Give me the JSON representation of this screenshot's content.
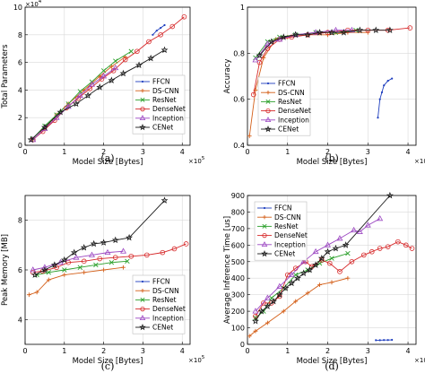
{
  "colors": {
    "FFCN": "#1f3fbf",
    "DS-CNN": "#d4601a",
    "ResNet": "#2ca02c",
    "DenseNet": "#d62728",
    "Inception": "#9c48c2",
    "CENet": "#1a1a1a"
  },
  "legend_entries": [
    "FFCN",
    "DS-CNN",
    "ResNet",
    "DenseNet",
    "Inception",
    "CENet"
  ],
  "chart_data": [
    {
      "panel": "(a)",
      "type": "line",
      "xlabel": "Model Size [Bytes]",
      "ylabel": "Total Parameters",
      "x_multiplier": "×10^5",
      "y_multiplier": "×10^4",
      "xlim": [
        0,
        4.2
      ],
      "ylim": [
        0,
        10
      ],
      "xticks": [
        0,
        1,
        2,
        3,
        4
      ],
      "yticks": [
        0,
        2,
        4,
        6,
        8,
        10
      ],
      "legend_position": "bottom-right",
      "series": [
        {
          "name": "FFCN",
          "marker": "dot",
          "points": [
            [
              3.25,
              8.0
            ],
            [
              3.35,
              8.3
            ],
            [
              3.45,
              8.5
            ],
            [
              3.55,
              8.7
            ]
          ]
        },
        {
          "name": "DS-CNN",
          "marker": "plus",
          "points": [
            [
              0.2,
              0.4
            ],
            [
              0.5,
              1.2
            ],
            [
              0.8,
              2.2
            ],
            [
              1.1,
              3.0
            ],
            [
              1.5,
              4.0
            ],
            [
              1.9,
              5.0
            ],
            [
              2.2,
              5.7
            ],
            [
              2.55,
              6.4
            ]
          ]
        },
        {
          "name": "ResNet",
          "marker": "x",
          "points": [
            [
              0.2,
              0.5
            ],
            [
              0.5,
              1.4
            ],
            [
              0.8,
              2.2
            ],
            [
              1.1,
              3.0
            ],
            [
              1.4,
              3.9
            ],
            [
              1.7,
              4.6
            ],
            [
              2.0,
              5.4
            ],
            [
              2.3,
              6.1
            ],
            [
              2.7,
              6.8
            ]
          ]
        },
        {
          "name": "DenseNet",
          "marker": "circle",
          "points": [
            [
              0.2,
              0.4
            ],
            [
              0.45,
              1.0
            ],
            [
              0.75,
              1.8
            ],
            [
              1.05,
              2.7
            ],
            [
              1.35,
              3.4
            ],
            [
              1.65,
              4.1
            ],
            [
              1.95,
              4.8
            ],
            [
              2.25,
              5.4
            ],
            [
              2.55,
              6.2
            ],
            [
              2.85,
              6.8
            ],
            [
              3.15,
              7.5
            ],
            [
              3.45,
              8.0
            ],
            [
              3.75,
              8.6
            ],
            [
              4.05,
              9.3
            ]
          ]
        },
        {
          "name": "Inception",
          "marker": "triangle",
          "points": [
            [
              0.2,
              0.4
            ],
            [
              0.5,
              1.2
            ],
            [
              0.8,
              2.0
            ],
            [
              1.1,
              2.8
            ],
            [
              1.4,
              3.6
            ],
            [
              1.7,
              4.4
            ],
            [
              2.0,
              5.0
            ],
            [
              2.3,
              5.6
            ]
          ]
        },
        {
          "name": "CENet",
          "marker": "star",
          "points": [
            [
              0.15,
              0.4
            ],
            [
              0.5,
              1.3
            ],
            [
              0.9,
              2.4
            ],
            [
              1.3,
              3.0
            ],
            [
              1.6,
              3.6
            ],
            [
              1.9,
              4.2
            ],
            [
              2.2,
              4.7
            ],
            [
              2.5,
              5.2
            ],
            [
              2.9,
              5.8
            ],
            [
              3.2,
              6.3
            ],
            [
              3.55,
              6.9
            ]
          ]
        }
      ]
    },
    {
      "panel": "(b)",
      "type": "line",
      "xlabel": "Model Size [Bytes]",
      "ylabel": "Accuracy",
      "x_multiplier": "×10^5",
      "xlim": [
        0,
        4.2
      ],
      "ylim": [
        0.4,
        1.0
      ],
      "xticks": [
        0,
        1,
        2,
        3,
        4
      ],
      "yticks": [
        0.4,
        0.6,
        0.8,
        1.0
      ],
      "ytick_labels": [
        "0.4",
        "0.6",
        "0.8",
        "1"
      ],
      "legend_position": "bottom-left",
      "series": [
        {
          "name": "FFCN",
          "marker": "dot",
          "points": [
            [
              3.25,
              0.52
            ],
            [
              3.3,
              0.6
            ],
            [
              3.35,
              0.63
            ],
            [
              3.4,
              0.66
            ],
            [
              3.5,
              0.68
            ],
            [
              3.6,
              0.69
            ]
          ]
        },
        {
          "name": "DS-CNN",
          "marker": "plus",
          "points": [
            [
              0.05,
              0.44
            ],
            [
              0.2,
              0.64
            ],
            [
              0.4,
              0.78
            ],
            [
              0.7,
              0.86
            ],
            [
              1.0,
              0.87
            ],
            [
              1.5,
              0.88
            ],
            [
              2.0,
              0.88
            ],
            [
              2.5,
              0.89
            ],
            [
              3.0,
              0.89
            ]
          ]
        },
        {
          "name": "ResNet",
          "marker": "x",
          "points": [
            [
              0.2,
              0.78
            ],
            [
              0.5,
              0.85
            ],
            [
              0.8,
              0.87
            ],
            [
              1.2,
              0.88
            ],
            [
              1.7,
              0.89
            ],
            [
              2.2,
              0.89
            ],
            [
              2.7,
              0.9
            ]
          ]
        },
        {
          "name": "DenseNet",
          "marker": "circle",
          "points": [
            [
              0.15,
              0.62
            ],
            [
              0.3,
              0.76
            ],
            [
              0.5,
              0.82
            ],
            [
              0.8,
              0.86
            ],
            [
              1.1,
              0.87
            ],
            [
              1.5,
              0.88
            ],
            [
              2.0,
              0.89
            ],
            [
              2.5,
              0.9
            ],
            [
              3.0,
              0.9
            ],
            [
              3.5,
              0.9
            ],
            [
              4.05,
              0.91
            ]
          ]
        },
        {
          "name": "Inception",
          "marker": "triangle",
          "points": [
            [
              0.2,
              0.77
            ],
            [
              0.5,
              0.84
            ],
            [
              0.8,
              0.86
            ],
            [
              1.2,
              0.88
            ],
            [
              1.7,
              0.89
            ],
            [
              2.2,
              0.9
            ],
            [
              2.6,
              0.9
            ]
          ]
        },
        {
          "name": "CENet",
          "marker": "star",
          "points": [
            [
              0.3,
              0.79
            ],
            [
              0.6,
              0.85
            ],
            [
              0.9,
              0.87
            ],
            [
              1.2,
              0.88
            ],
            [
              1.5,
              0.88
            ],
            [
              1.8,
              0.89
            ],
            [
              2.1,
              0.89
            ],
            [
              2.4,
              0.89
            ],
            [
              2.8,
              0.9
            ],
            [
              3.2,
              0.9
            ],
            [
              3.55,
              0.9
            ]
          ]
        }
      ]
    },
    {
      "panel": "(c)",
      "type": "line",
      "xlabel": "Model Size [Bytes]",
      "ylabel": "Peak Memory [MB]",
      "x_multiplier": "×10^5",
      "xlim": [
        0,
        4.2
      ],
      "ylim": [
        3,
        9
      ],
      "xticks": [
        0,
        1,
        2,
        3,
        4
      ],
      "yticks": [
        4,
        6,
        8
      ],
      "legend_position": "bottom-right",
      "series": [
        {
          "name": "FFCN",
          "marker": "dot",
          "points": [
            [
              3.2,
              5.7
            ],
            [
              3.3,
              5.7
            ],
            [
              3.4,
              5.7
            ],
            [
              3.55,
              5.72
            ]
          ]
        },
        {
          "name": "DS-CNN",
          "marker": "plus",
          "points": [
            [
              0.1,
              5.0
            ],
            [
              0.3,
              5.1
            ],
            [
              0.6,
              5.6
            ],
            [
              1.0,
              5.8
            ],
            [
              1.5,
              5.9
            ],
            [
              2.0,
              6.0
            ],
            [
              2.5,
              6.1
            ]
          ]
        },
        {
          "name": "ResNet",
          "marker": "x",
          "points": [
            [
              0.3,
              5.8
            ],
            [
              0.6,
              5.9
            ],
            [
              1.0,
              6.0
            ],
            [
              1.4,
              6.1
            ],
            [
              1.8,
              6.2
            ],
            [
              2.2,
              6.3
            ],
            [
              2.6,
              6.35
            ]
          ]
        },
        {
          "name": "DenseNet",
          "marker": "circle",
          "points": [
            [
              0.2,
              5.9
            ],
            [
              0.45,
              5.95
            ],
            [
              0.8,
              6.1
            ],
            [
              1.1,
              6.3
            ],
            [
              1.5,
              6.35
            ],
            [
              1.9,
              6.45
            ],
            [
              2.3,
              6.5
            ],
            [
              2.7,
              6.55
            ],
            [
              3.1,
              6.6
            ],
            [
              3.5,
              6.7
            ],
            [
              3.8,
              6.85
            ],
            [
              4.1,
              7.05
            ]
          ]
        },
        {
          "name": "Inception",
          "marker": "triangle",
          "points": [
            [
              0.2,
              6.0
            ],
            [
              0.5,
              6.1
            ],
            [
              0.9,
              6.3
            ],
            [
              1.3,
              6.5
            ],
            [
              1.7,
              6.6
            ],
            [
              2.1,
              6.7
            ],
            [
              2.5,
              6.75
            ]
          ]
        },
        {
          "name": "CENet",
          "marker": "star",
          "points": [
            [
              0.25,
              5.8
            ],
            [
              0.5,
              6.0
            ],
            [
              0.75,
              6.2
            ],
            [
              1.0,
              6.4
            ],
            [
              1.25,
              6.7
            ],
            [
              1.5,
              6.9
            ],
            [
              1.75,
              7.05
            ],
            [
              2.0,
              7.1
            ],
            [
              2.3,
              7.2
            ],
            [
              2.65,
              7.3
            ],
            [
              3.55,
              8.8
            ]
          ]
        }
      ]
    },
    {
      "panel": "(d)",
      "type": "line",
      "xlabel": "Model Size [Bytes]",
      "ylabel": "Average Inference Time [us]",
      "x_multiplier": "×10^5",
      "xlim": [
        0,
        4.2
      ],
      "ylim": [
        0,
        900
      ],
      "xticks": [
        0,
        1,
        2,
        3,
        4
      ],
      "yticks": [
        0,
        100,
        200,
        300,
        400,
        500,
        600,
        700,
        800,
        900
      ],
      "legend_position": "top-left",
      "series": [
        {
          "name": "FFCN",
          "marker": "dot",
          "points": [
            [
              3.2,
              25
            ],
            [
              3.3,
              25
            ],
            [
              3.4,
              26
            ],
            [
              3.5,
              26
            ],
            [
              3.6,
              27
            ]
          ]
        },
        {
          "name": "DS-CNN",
          "marker": "plus",
          "points": [
            [
              0.05,
              50
            ],
            [
              0.2,
              80
            ],
            [
              0.5,
              130
            ],
            [
              0.9,
              200
            ],
            [
              1.2,
              260
            ],
            [
              1.5,
              310
            ],
            [
              1.8,
              360
            ],
            [
              2.1,
              375
            ],
            [
              2.5,
              400
            ]
          ]
        },
        {
          "name": "ResNet",
          "marker": "x",
          "points": [
            [
              0.2,
              160
            ],
            [
              0.4,
              200
            ],
            [
              0.6,
              280
            ],
            [
              0.9,
              340
            ],
            [
              1.2,
              420
            ],
            [
              1.5,
              450
            ],
            [
              1.8,
              490
            ],
            [
              2.1,
              520
            ],
            [
              2.5,
              550
            ]
          ]
        },
        {
          "name": "DenseNet",
          "marker": "circle",
          "points": [
            [
              0.2,
              170
            ],
            [
              0.4,
              250
            ],
            [
              0.6,
              250
            ],
            [
              0.8,
              290
            ],
            [
              1.0,
              420
            ],
            [
              1.2,
              460
            ],
            [
              1.45,
              500
            ],
            [
              1.6,
              470
            ],
            [
              1.85,
              510
            ],
            [
              2.05,
              490
            ],
            [
              2.3,
              440
            ],
            [
              2.6,
              500
            ],
            [
              2.9,
              540
            ],
            [
              3.1,
              560
            ],
            [
              3.3,
              580
            ],
            [
              3.5,
              590
            ],
            [
              3.75,
              620
            ],
            [
              3.95,
              600
            ],
            [
              4.1,
              580
            ]
          ]
        },
        {
          "name": "Inception",
          "marker": "triangle",
          "points": [
            [
              0.2,
              200
            ],
            [
              0.5,
              280
            ],
            [
              0.8,
              350
            ],
            [
              1.1,
              420
            ],
            [
              1.4,
              500
            ],
            [
              1.7,
              560
            ],
            [
              2.0,
              600
            ],
            [
              2.3,
              640
            ],
            [
              2.65,
              690
            ],
            [
              2.8,
              680
            ],
            [
              3.0,
              720
            ],
            [
              3.3,
              760
            ]
          ]
        },
        {
          "name": "CENet",
          "marker": "star",
          "points": [
            [
              0.2,
              140
            ],
            [
              0.35,
              200
            ],
            [
              0.5,
              230
            ],
            [
              0.65,
              260
            ],
            [
              0.8,
              300
            ],
            [
              0.95,
              340
            ],
            [
              1.1,
              370
            ],
            [
              1.25,
              400
            ],
            [
              1.4,
              430
            ],
            [
              1.55,
              450
            ],
            [
              1.7,
              480
            ],
            [
              1.85,
              520
            ],
            [
              2.0,
              560
            ],
            [
              2.2,
              580
            ],
            [
              2.45,
              600
            ],
            [
              3.55,
              900
            ]
          ]
        }
      ]
    }
  ]
}
